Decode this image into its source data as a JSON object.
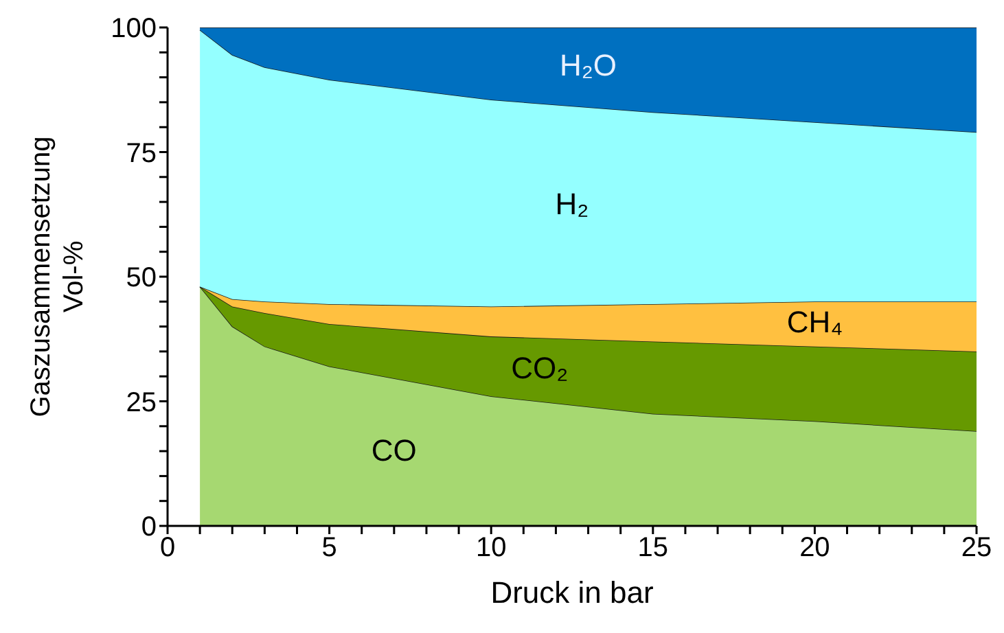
{
  "chart_data": {
    "type": "area",
    "stacked": true,
    "xlabel": "Druck in bar",
    "ylabel": "Gaszusammensetzung\nVol-%",
    "x": [
      1,
      2,
      3,
      5,
      10,
      15,
      20,
      25
    ],
    "series": [
      {
        "name": "CO",
        "color": "#a6d871",
        "values": [
          48,
          40,
          36,
          32,
          26,
          22.5,
          21,
          19
        ]
      },
      {
        "name": "CO₂",
        "color": "#669900",
        "values": [
          0,
          4,
          6.7,
          8.5,
          12,
          14.5,
          15,
          16
        ]
      },
      {
        "name": "CH₄",
        "color": "#ffc040",
        "values": [
          0,
          1.5,
          2.3,
          4,
          6,
          7.5,
          9,
          10
        ]
      },
      {
        "name": "H₂",
        "color": "#94ffff",
        "values": [
          51.5,
          49,
          47,
          45,
          41.5,
          38.5,
          36,
          34
        ]
      },
      {
        "name": "H₂O",
        "color": "#0070c0",
        "values": [
          0.5,
          5.5,
          8,
          10.5,
          14.5,
          17,
          19,
          21
        ]
      }
    ],
    "xlim": [
      0,
      25
    ],
    "xticks": [
      0,
      {
        "value": 1,
        "label": null
      },
      {
        "value": 2,
        "label": null
      },
      {
        "value": 3,
        "label": null
      },
      {
        "value": 4,
        "label": null
      },
      5,
      {
        "value": 6,
        "label": null
      },
      {
        "value": 7,
        "label": null
      },
      {
        "value": 8,
        "label": null
      },
      {
        "value": 9,
        "label": null
      },
      10,
      {
        "value": 11,
        "label": null
      },
      {
        "value": 12,
        "label": null
      },
      {
        "value": 13,
        "label": null
      },
      {
        "value": 14,
        "label": null
      },
      15,
      {
        "value": 16,
        "label": null
      },
      {
        "value": 17,
        "label": null
      },
      {
        "value": 18,
        "label": null
      },
      {
        "value": 19,
        "label": null
      },
      20,
      {
        "value": 21,
        "label": null
      },
      {
        "value": 22,
        "label": null
      },
      {
        "value": 23,
        "label": null
      },
      {
        "value": 24,
        "label": null
      },
      25
    ],
    "ylim": [
      0,
      100
    ],
    "yticks": [
      0,
      {
        "value": 5,
        "label": null
      },
      {
        "value": 10,
        "label": null
      },
      {
        "value": 15,
        "label": null
      },
      {
        "value": 20,
        "label": null
      },
      25,
      {
        "value": 30,
        "label": null
      },
      {
        "value": 35,
        "label": null
      },
      {
        "value": 40,
        "label": null
      },
      {
        "value": 45,
        "label": null
      },
      50,
      {
        "value": 55,
        "label": null
      },
      {
        "value": 60,
        "label": null
      },
      {
        "value": 65,
        "label": null
      },
      {
        "value": 70,
        "label": null
      },
      75,
      {
        "value": 80,
        "label": null
      },
      {
        "value": 85,
        "label": null
      },
      {
        "value": 90,
        "label": null
      },
      {
        "value": 95,
        "label": null
      },
      100
    ],
    "grid": false,
    "legend": false
  }
}
